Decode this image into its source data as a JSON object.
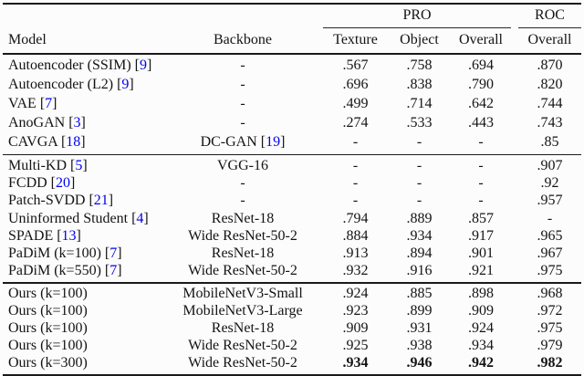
{
  "meta": {
    "citation_color": "#0000ee",
    "description": "Academic paper results table comparing anomaly detection models on PRO and ROC metrics"
  },
  "header": {
    "pro_group": "PRO",
    "roc_group": "ROC",
    "model": "Model",
    "backbone": "Backbone",
    "texture": "Texture",
    "object": "Object",
    "overall": "Overall",
    "roc_overall": "Overall"
  },
  "chart_data": {
    "type": "table",
    "columns": [
      "Model",
      "Backbone",
      "PRO Texture",
      "PRO Object",
      "PRO Overall",
      "ROC Overall"
    ],
    "sections": [
      {
        "rows": [
          {
            "model": "Autoencoder (SSIM)",
            "model_cite": "9",
            "backbone": "-",
            "backbone_cite": null,
            "texture": ".567",
            "object": ".758",
            "overall": ".694",
            "roc_overall": ".870",
            "bold_values": false
          },
          {
            "model": "Autoencoder (L2)",
            "model_cite": "9",
            "backbone": "-",
            "backbone_cite": null,
            "texture": ".696",
            "object": ".838",
            "overall": ".790",
            "roc_overall": ".820",
            "bold_values": false
          },
          {
            "model": "VAE",
            "model_cite": "7",
            "backbone": "-",
            "backbone_cite": null,
            "texture": ".499",
            "object": ".714",
            "overall": ".642",
            "roc_overall": ".744",
            "bold_values": false
          },
          {
            "model": "AnoGAN",
            "model_cite": "3",
            "backbone": "-",
            "backbone_cite": null,
            "texture": ".274",
            "object": ".533",
            "overall": ".443",
            "roc_overall": ".743",
            "bold_values": false
          },
          {
            "model": "CAVGA",
            "model_cite": "18",
            "backbone": "DC-GAN",
            "backbone_cite": "19",
            "texture": "-",
            "object": "-",
            "overall": "-",
            "roc_overall": ".85",
            "bold_values": false
          }
        ]
      },
      {
        "rows": [
          {
            "model": "Multi-KD",
            "model_cite": "5",
            "backbone": "VGG-16",
            "backbone_cite": null,
            "texture": "-",
            "object": "-",
            "overall": "-",
            "roc_overall": ".907",
            "bold_values": false
          },
          {
            "model": "FCDD",
            "model_cite": "20",
            "backbone": "-",
            "backbone_cite": null,
            "texture": "-",
            "object": "-",
            "overall": "-",
            "roc_overall": ".92",
            "bold_values": false
          },
          {
            "model": "Patch-SVDD",
            "model_cite": "21",
            "backbone": "-",
            "backbone_cite": null,
            "texture": "-",
            "object": "-",
            "overall": "-",
            "roc_overall": ".957",
            "bold_values": false
          },
          {
            "model": "Uninformed Student",
            "model_cite": "4",
            "backbone": "ResNet-18",
            "backbone_cite": null,
            "texture": ".794",
            "object": ".889",
            "overall": ".857",
            "roc_overall": "-",
            "bold_values": false
          },
          {
            "model": "SPADE",
            "model_cite": "13",
            "backbone": "Wide ResNet-50-2",
            "backbone_cite": null,
            "texture": ".884",
            "object": ".934",
            "overall": ".917",
            "roc_overall": ".965",
            "bold_values": false
          },
          {
            "model": "PaDiM (k=100)",
            "model_cite": "7",
            "backbone": "ResNet-18",
            "backbone_cite": null,
            "texture": ".913",
            "object": ".894",
            "overall": ".901",
            "roc_overall": ".967",
            "bold_values": false
          },
          {
            "model": "PaDiM (k=550)",
            "model_cite": "7",
            "backbone": "Wide ResNet-50-2",
            "backbone_cite": null,
            "texture": ".932",
            "object": ".916",
            "overall": ".921",
            "roc_overall": ".975",
            "bold_values": false
          }
        ]
      },
      {
        "rows": [
          {
            "model": "Ours (k=100)",
            "model_cite": null,
            "backbone": "MobileNetV3-Small",
            "backbone_cite": null,
            "texture": ".924",
            "object": ".885",
            "overall": ".898",
            "roc_overall": ".968",
            "bold_values": false
          },
          {
            "model": "Ours (k=100)",
            "model_cite": null,
            "backbone": "MobileNetV3-Large",
            "backbone_cite": null,
            "texture": ".923",
            "object": ".899",
            "overall": ".909",
            "roc_overall": ".972",
            "bold_values": false
          },
          {
            "model": "Ours (k=100)",
            "model_cite": null,
            "backbone": "ResNet-18",
            "backbone_cite": null,
            "texture": ".909",
            "object": ".931",
            "overall": ".924",
            "roc_overall": ".975",
            "bold_values": false
          },
          {
            "model": "Ours (k=100)",
            "model_cite": null,
            "backbone": "Wide ResNet-50-2",
            "backbone_cite": null,
            "texture": ".925",
            "object": ".938",
            "overall": ".934",
            "roc_overall": ".979",
            "bold_values": false
          },
          {
            "model": "Ours (k=300)",
            "model_cite": null,
            "backbone": "Wide ResNet-50-2",
            "backbone_cite": null,
            "texture": ".934",
            "object": ".946",
            "overall": ".942",
            "roc_overall": ".982",
            "bold_values": true
          }
        ]
      }
    ]
  }
}
